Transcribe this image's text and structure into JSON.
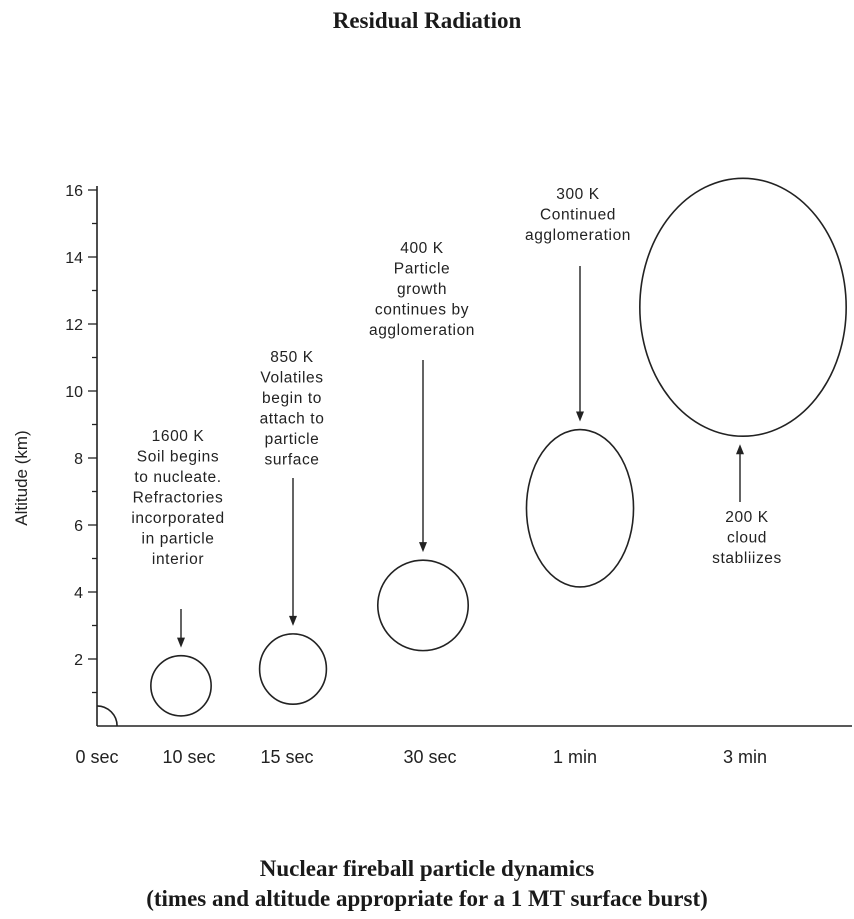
{
  "title": "Residual Radiation",
  "caption_line1": "Nuclear fireball particle dynamics",
  "caption_line2": "(times and altitude appropriate for a 1 MT surface burst)",
  "y_axis": {
    "label": "Altitude (km)",
    "min": 0,
    "max": 16,
    "ticks": [
      "2",
      "4",
      "6",
      "8",
      "10",
      "12",
      "14",
      "16"
    ]
  },
  "stages": [
    {
      "time": "0 sec",
      "center_km": 0,
      "radius_km": 0.6,
      "note": []
    },
    {
      "time": "10 sec",
      "center_km": 1.2,
      "radius_km": 0.9,
      "note": [
        "1600 K",
        "Soil begins",
        "to nucleate.",
        "Refractories",
        "incorporated",
        "in particle",
        "interior"
      ]
    },
    {
      "time": "15 sec",
      "center_km": 1.7,
      "radius_km": 1.05,
      "note": [
        "850 K",
        "Volatiles",
        "begin to",
        "attach to",
        "particle",
        "surface"
      ]
    },
    {
      "time": "30 sec",
      "center_km": 3.6,
      "radius_km": 1.35,
      "note": [
        "400 K",
        "Particle",
        "growth",
        "continues by",
        "agglomeration"
      ]
    },
    {
      "time": "1 min",
      "center_km": 6.5,
      "radius_km": 2.35,
      "note": [
        "300 K",
        "Continued",
        "agglomeration"
      ]
    },
    {
      "time": "3 min",
      "center_km": 12.5,
      "radius_km": 3.85,
      "note": [
        "200 K",
        "cloud",
        "stabliizes"
      ]
    }
  ]
}
